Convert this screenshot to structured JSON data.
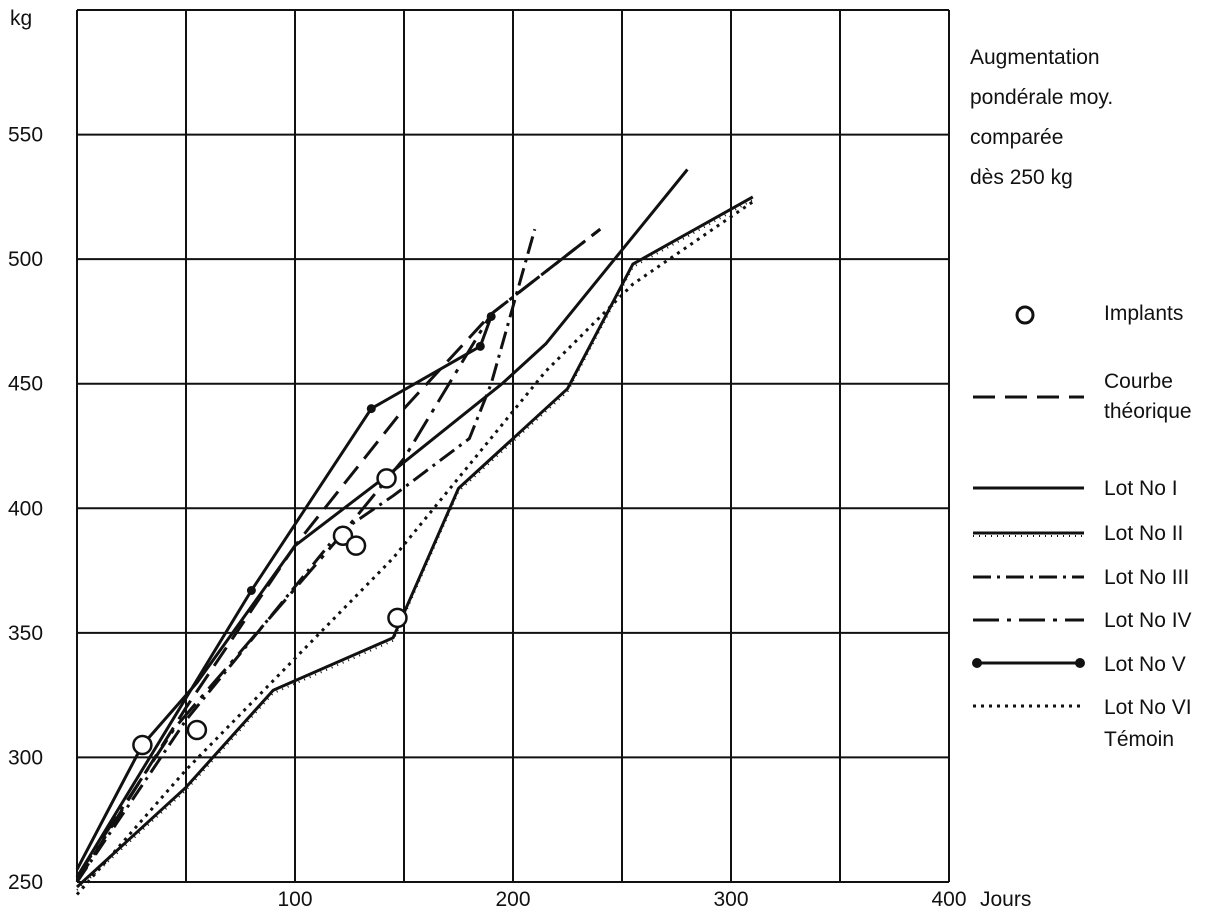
{
  "chart_data": {
    "type": "line",
    "title_lines": [
      "Augmentation",
      "pondérale moy.",
      "comparée",
      "dès 250 kg"
    ],
    "ylabel": "kg",
    "xlabel": "Jours",
    "xlim": [
      0,
      400
    ],
    "ylim": [
      250,
      600
    ],
    "grid": true,
    "legend_position": "right",
    "x_ticks": [
      "100",
      "200",
      "300",
      "400"
    ],
    "y_ticks": [
      "250",
      "300",
      "350",
      "400",
      "450",
      "500",
      "550"
    ],
    "series": [
      {
        "name": "Courbe théorique",
        "style": "dashed",
        "points": [
          [
            0,
            250
          ],
          [
            50,
            320
          ],
          [
            100,
            385
          ],
          [
            150,
            440
          ],
          [
            190,
            478
          ],
          [
            240,
            512
          ]
        ]
      },
      {
        "name": "Lot No I",
        "style": "solid",
        "points": [
          [
            0,
            255
          ],
          [
            30,
            305
          ],
          [
            55,
            330
          ],
          [
            100,
            385
          ],
          [
            145,
            415
          ],
          [
            195,
            450
          ],
          [
            215,
            466
          ],
          [
            280,
            536
          ]
        ]
      },
      {
        "name": "Lot No II",
        "style": "solid-dotted",
        "points": [
          [
            0,
            248
          ],
          [
            50,
            288
          ],
          [
            90,
            327
          ],
          [
            145,
            348
          ],
          [
            175,
            408
          ],
          [
            225,
            448
          ],
          [
            255,
            498
          ],
          [
            310,
            525
          ]
        ]
      },
      {
        "name": "Lot No III",
        "style": "dashdot",
        "points": [
          [
            0,
            250
          ],
          [
            50,
            315
          ],
          [
            120,
            390
          ],
          [
            145,
            405
          ],
          [
            180,
            428
          ],
          [
            190,
            450
          ],
          [
            210,
            512
          ]
        ]
      },
      {
        "name": "Lot No IV",
        "style": "dashdot-long",
        "points": [
          [
            0,
            252
          ],
          [
            45,
            312
          ],
          [
            120,
            388
          ],
          [
            150,
            420
          ],
          [
            190,
            478
          ],
          [
            240,
            512
          ]
        ]
      },
      {
        "name": "Lot No V",
        "style": "solid-dots",
        "points": [
          [
            0,
            252
          ],
          [
            80,
            367
          ],
          [
            135,
            440
          ],
          [
            185,
            465
          ],
          [
            190,
            477
          ]
        ]
      },
      {
        "name": "Lot No VI\nTémoin",
        "style": "dotted",
        "points": [
          [
            0,
            245
          ],
          [
            50,
            295
          ],
          [
            145,
            380
          ],
          [
            215,
            455
          ],
          [
            255,
            490
          ],
          [
            310,
            523
          ]
        ]
      }
    ],
    "implants": [
      [
        30,
        305
      ],
      [
        55,
        311
      ],
      [
        122,
        389
      ],
      [
        128,
        385
      ],
      [
        142,
        412
      ],
      [
        147,
        356
      ]
    ],
    "legend": {
      "implants": "Implants",
      "theoretical": [
        "Courbe",
        "théorique"
      ],
      "lots": [
        "Lot No I",
        "Lot No II",
        "Lot No III",
        "Lot No IV",
        "Lot No V",
        "Lot No VI"
      ],
      "lot6_extra": "Témoin"
    }
  }
}
